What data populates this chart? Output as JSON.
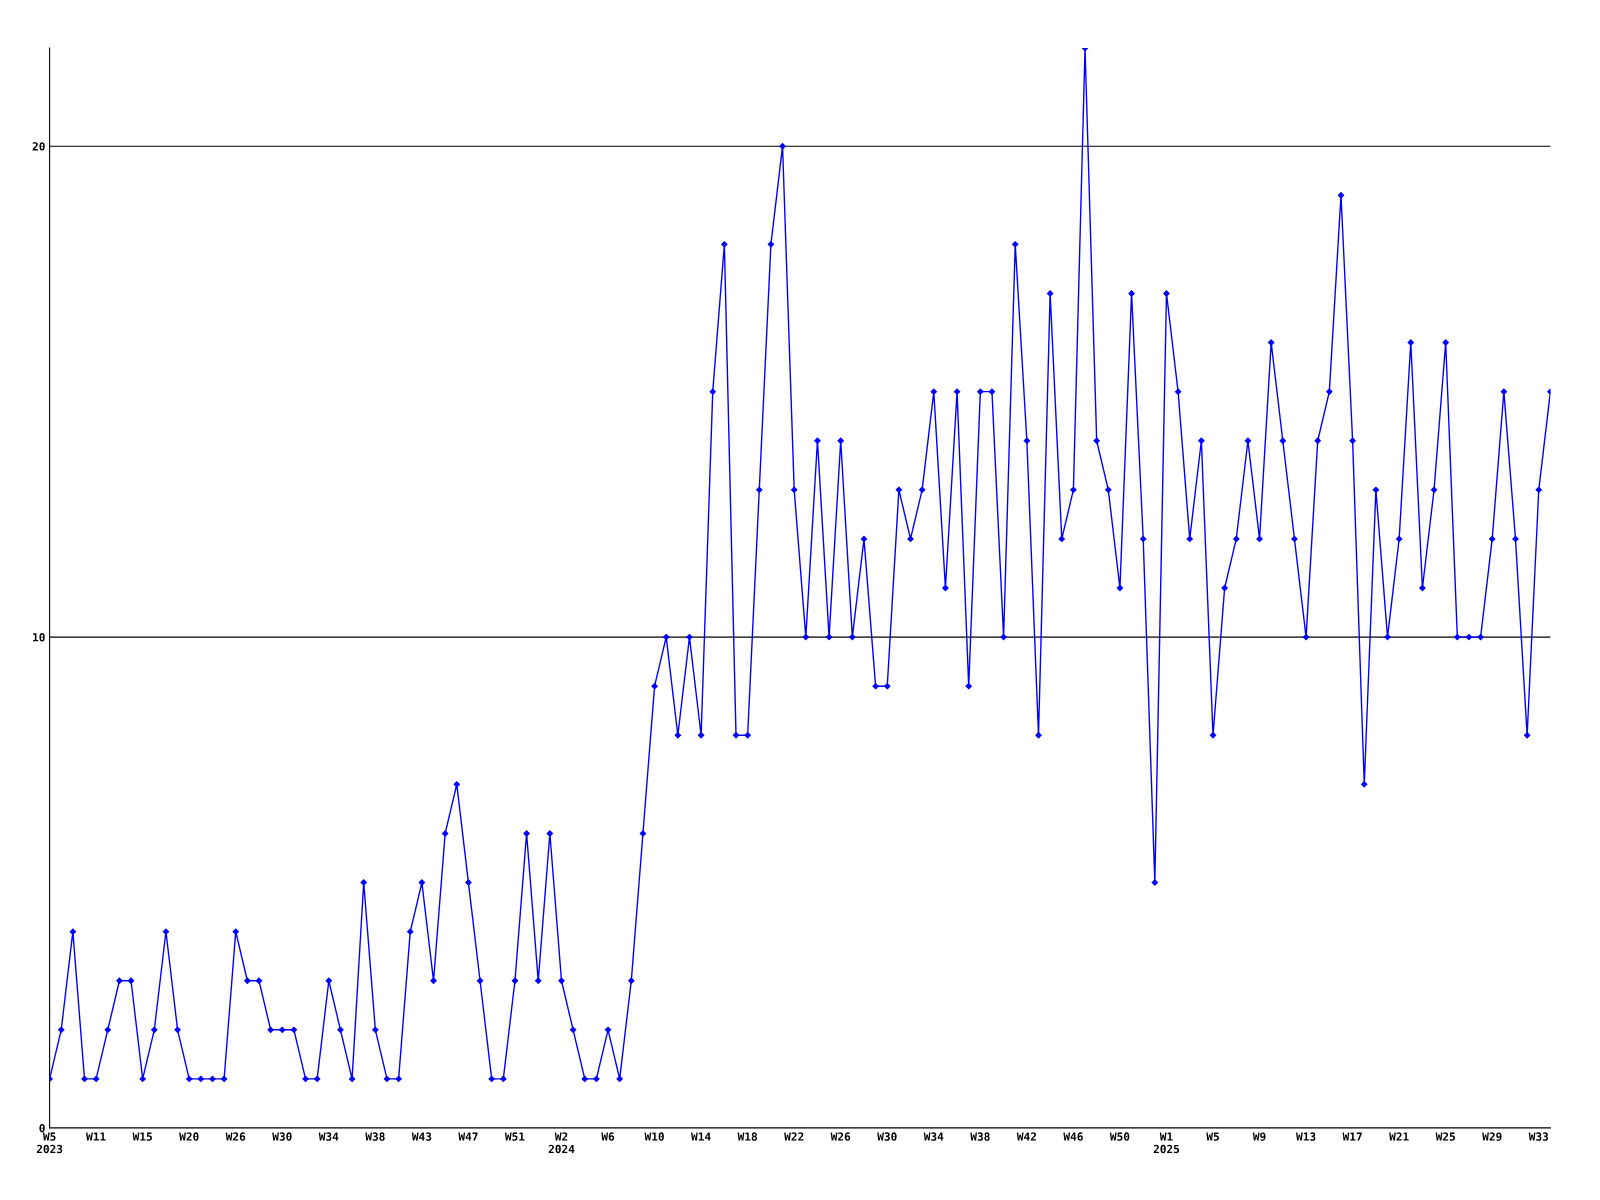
{
  "chart_data": {
    "type": "line",
    "categories": [
      "W5\n2023",
      null,
      null,
      null,
      "W11",
      null,
      null,
      null,
      "W15",
      null,
      null,
      null,
      "W20",
      null,
      null,
      null,
      "W26",
      null,
      null,
      null,
      "W30",
      null,
      null,
      null,
      "W34",
      null,
      null,
      null,
      "W38",
      null,
      null,
      null,
      "W43",
      null,
      null,
      null,
      "W47",
      null,
      null,
      null,
      "W51",
      null,
      null,
      null,
      "W2\n2024",
      null,
      null,
      null,
      "W6",
      null,
      null,
      null,
      "W10",
      null,
      null,
      null,
      "W14",
      null,
      null,
      null,
      "W18",
      null,
      null,
      null,
      "W22",
      null,
      null,
      null,
      "W26",
      null,
      null,
      null,
      "W30",
      null,
      null,
      null,
      "W34",
      null,
      null,
      null,
      "W38",
      null,
      null,
      null,
      "W42",
      null,
      null,
      null,
      "W46",
      null,
      null,
      null,
      "W50",
      null,
      null,
      null,
      "W1\n2025",
      null,
      null,
      null,
      "W5",
      null,
      null,
      null,
      "W9",
      null,
      null,
      null,
      "W13",
      null,
      null,
      null,
      "W17",
      null,
      null,
      null,
      "W21",
      null,
      null,
      null,
      "W25",
      null,
      null,
      null,
      "W29",
      null,
      null,
      null,
      "W33",
      null
    ],
    "series": [
      {
        "color": "#0000ff",
        "values": [
          1,
          2,
          4,
          1,
          1,
          2,
          3,
          3,
          1,
          2,
          4,
          2,
          1,
          1,
          1,
          1,
          4,
          3,
          3,
          2,
          2,
          2,
          1,
          1,
          3,
          2,
          1,
          5,
          2,
          1,
          1,
          4,
          5,
          3,
          6,
          7,
          5,
          3,
          1,
          1,
          3,
          6,
          3,
          6,
          3,
          2,
          1,
          1,
          2,
          1,
          3,
          6,
          9,
          10,
          8,
          10,
          8,
          15,
          18,
          8,
          8,
          13,
          18,
          20,
          13,
          10,
          14,
          10,
          14,
          10,
          12,
          9,
          9,
          13,
          12,
          13,
          15,
          11,
          15,
          9,
          15,
          15,
          10,
          18,
          14,
          8,
          17,
          12,
          13,
          22,
          14,
          13,
          11,
          17,
          12,
          5,
          17,
          15,
          12,
          14,
          8,
          11,
          12,
          14,
          12,
          16,
          14,
          12,
          10,
          14,
          15,
          19,
          14,
          7,
          13,
          10,
          12,
          16,
          11,
          13,
          16,
          10,
          10,
          10,
          12,
          15,
          12,
          8,
          13,
          15
        ]
      }
    ],
    "ylim": [
      0,
      22
    ],
    "yticks": [
      0,
      10,
      20
    ],
    "grid": "y",
    "marker": "diamond",
    "line_style": "solid"
  }
}
